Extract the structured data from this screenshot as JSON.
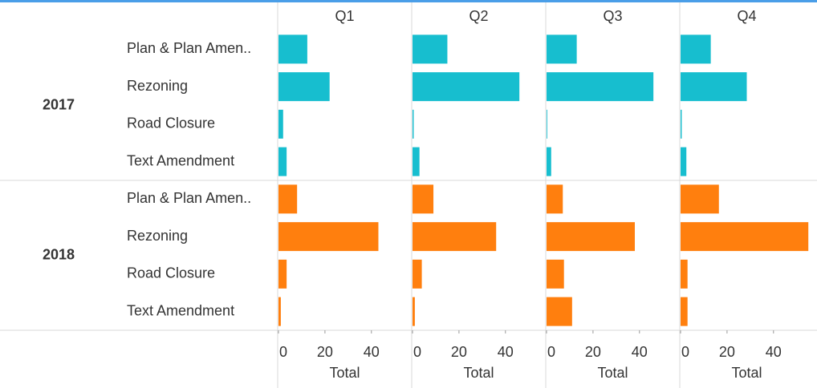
{
  "chart_data": {
    "type": "bar",
    "orientation": "horizontal",
    "panels": [
      "Q1",
      "Q2",
      "Q3",
      "Q4"
    ],
    "categories": [
      "Plan & Plan Amen..",
      "Rezoning",
      "Road Closure",
      "Text Amendment"
    ],
    "series": [
      {
        "name": "2017",
        "color": "#17becf",
        "values": [
          [
            12.4,
            22,
            2,
            3.5
          ],
          [
            15,
            46,
            0.5,
            3
          ],
          [
            13,
            46,
            0.3,
            2
          ],
          [
            13,
            28.5,
            0.5,
            2.5
          ]
        ]
      },
      {
        "name": "2018",
        "color": "#ff7f0e",
        "values": [
          [
            8,
            43,
            3.5,
            1
          ],
          [
            9,
            36,
            4,
            1
          ],
          [
            7,
            38,
            7.5,
            11
          ],
          [
            16.5,
            55,
            3,
            3
          ]
        ]
      }
    ],
    "xlim": [
      0,
      57
    ],
    "xticks": [
      0,
      20,
      40
    ],
    "xlabel": "Total"
  }
}
